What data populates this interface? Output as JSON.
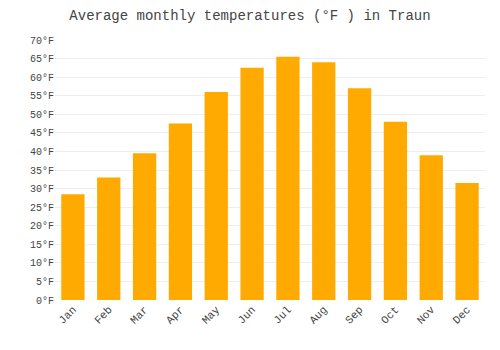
{
  "chart_data": {
    "type": "bar",
    "title": "Average monthly temperatures (°F ) in Traun",
    "categories": [
      "Jan",
      "Feb",
      "Mar",
      "Apr",
      "May",
      "Jun",
      "Jul",
      "Aug",
      "Sep",
      "Oct",
      "Nov",
      "Dec"
    ],
    "values": [
      28.5,
      33.0,
      39.5,
      47.5,
      56.0,
      62.5,
      65.5,
      64.0,
      57.0,
      48.0,
      39.0,
      31.5
    ],
    "color": "#FFAA00",
    "ylim": [
      0,
      70
    ],
    "yticks": [
      {
        "value": 0,
        "label": "0°F"
      },
      {
        "value": 5,
        "label": "5°F"
      },
      {
        "value": 10,
        "label": "10°F"
      },
      {
        "value": 15,
        "label": "15°F"
      },
      {
        "value": 20,
        "label": "20°F"
      },
      {
        "value": 25,
        "label": "25°F"
      },
      {
        "value": 30,
        "label": "30°F"
      },
      {
        "value": 35,
        "label": "35°F"
      },
      {
        "value": 40,
        "label": "40°F"
      },
      {
        "value": 45,
        "label": "45°F"
      },
      {
        "value": 50,
        "label": "50°F"
      },
      {
        "value": 55,
        "label": "55°F"
      },
      {
        "value": 60,
        "label": "60°F"
      },
      {
        "value": 65,
        "label": "65°F"
      },
      {
        "value": 70,
        "label": "70°F"
      }
    ],
    "grid": true
  }
}
